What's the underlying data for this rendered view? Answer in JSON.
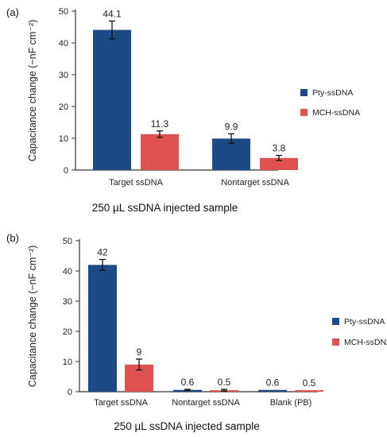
{
  "colors": {
    "series1": "#1b4a87",
    "series2": "#e05252",
    "axis": "#333333"
  },
  "chart_data": [
    {
      "type": "bar",
      "panel_label": "(a)",
      "categories": [
        "Target ssDNA",
        "Nontarget ssDNA"
      ],
      "series": [
        {
          "name": "Pty-ssDNA",
          "values": [
            44.1,
            9.9
          ],
          "errors": [
            2.8,
            1.5
          ],
          "labels": [
            "44.1",
            "9.9"
          ]
        },
        {
          "name": "MCH-ssDNA",
          "values": [
            11.3,
            3.8
          ],
          "errors": [
            1.0,
            0.8
          ],
          "labels": [
            "11.3",
            "3.8"
          ]
        }
      ],
      "xlabel": "250 µL ssDNA injected sample",
      "ylabel": "Capacitance change (−nF cm⁻²)",
      "ylim": [
        0,
        50
      ],
      "yticks": [
        "0",
        "10",
        "20",
        "30",
        "40",
        "50"
      ],
      "legend_position": "right"
    },
    {
      "type": "bar",
      "panel_label": "(b)",
      "categories": [
        "Target ssDNA",
        "Nontarget ssDNA",
        "Blank (PB)"
      ],
      "series": [
        {
          "name": "Pty-ssDNA",
          "values": [
            42,
            0.6,
            0.6
          ],
          "errors": [
            1.8,
            0.2,
            0
          ],
          "labels": [
            "42",
            "0.6",
            "0.6"
          ]
        },
        {
          "name": "MCH-ssDNA",
          "values": [
            9,
            0.5,
            0.5
          ],
          "errors": [
            1.8,
            0.3,
            0
          ],
          "labels": [
            "9",
            "0.5",
            "0.5"
          ]
        }
      ],
      "xlabel": "250 µL ssDNA injected sample",
      "ylabel": "Capacitance change (−nF cm⁻²)",
      "ylim": [
        0,
        50
      ],
      "yticks": [
        "0",
        "10",
        "20",
        "30",
        "40",
        "50"
      ],
      "legend_position": "right"
    }
  ]
}
